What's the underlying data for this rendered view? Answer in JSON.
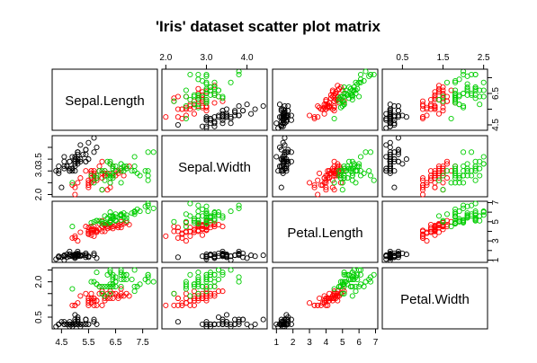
{
  "chart_data": {
    "type": "scatter",
    "title": "'Iris' dataset scatter plot matrix",
    "variables": [
      "Sepal.Length",
      "Sepal.Width",
      "Petal.Length",
      "Petal.Width"
    ],
    "axis_ticks": {
      "Sepal.Length": [
        4.5,
        5.5,
        6.5,
        7.5
      ],
      "Sepal.Width": [
        2.0,
        3.0,
        4.0
      ],
      "Petal.Length": [
        1,
        2,
        3,
        4,
        5,
        6,
        7
      ],
      "Petal.Width": [
        0.5,
        1.5,
        2.5
      ]
    },
    "tick_labels": {
      "Sepal.Length": [
        "4.5",
        "5.5",
        "6.5",
        "7.5"
      ],
      "Sepal.Width": [
        "2.0",
        "3.0",
        "4.0"
      ],
      "Petal.Length": [
        "1",
        "2",
        "3",
        "4",
        "5",
        "6",
        "7"
      ],
      "Petal.Width": [
        "0.5",
        "1.5",
        "2.5"
      ]
    },
    "axis_ticks_y": {
      "Sepal.Length": [
        4.5,
        5.5,
        6.5,
        7.5
      ],
      "Sepal.Width": [
        2.0,
        2.5,
        3.0,
        3.5,
        4.0
      ],
      "Petal.Length": [
        1,
        2,
        3,
        4,
        5,
        6,
        7
      ],
      "Petal.Width": [
        0.5,
        1.0,
        1.5,
        2.0,
        2.5
      ]
    },
    "tick_labels_y": {
      "Sepal.Length": [
        "4.5",
        "",
        "6.5",
        ""
      ],
      "Sepal.Width": [
        "2.0",
        "",
        "3.0",
        "3.5",
        ""
      ],
      "Petal.Length": [
        "1",
        "",
        "3",
        "",
        "5",
        "",
        "7"
      ],
      "Petal.Width": [
        "0.5",
        "",
        "",
        "2.0",
        ""
      ]
    },
    "axis_ranges": {
      "Sepal.Length": [
        4.3,
        7.9
      ],
      "Sepal.Width": [
        2.0,
        4.4
      ],
      "Petal.Length": [
        1.0,
        6.9
      ],
      "Petal.Width": [
        0.1,
        2.5
      ]
    },
    "series": [
      {
        "color": "#000000",
        "points": [
          [
            5.1,
            3.5,
            1.4,
            0.2
          ],
          [
            4.9,
            3.0,
            1.4,
            0.2
          ],
          [
            4.7,
            3.2,
            1.3,
            0.2
          ],
          [
            4.6,
            3.1,
            1.5,
            0.2
          ],
          [
            5.0,
            3.6,
            1.4,
            0.2
          ],
          [
            5.4,
            3.9,
            1.7,
            0.4
          ],
          [
            4.6,
            3.4,
            1.4,
            0.3
          ],
          [
            5.0,
            3.4,
            1.5,
            0.2
          ],
          [
            4.4,
            2.9,
            1.4,
            0.2
          ],
          [
            4.9,
            3.1,
            1.5,
            0.1
          ],
          [
            5.4,
            3.7,
            1.5,
            0.2
          ],
          [
            4.8,
            3.4,
            1.6,
            0.2
          ],
          [
            4.8,
            3.0,
            1.4,
            0.1
          ],
          [
            4.3,
            3.0,
            1.1,
            0.1
          ],
          [
            5.8,
            4.0,
            1.2,
            0.2
          ],
          [
            5.7,
            4.4,
            1.5,
            0.4
          ],
          [
            5.4,
            3.9,
            1.3,
            0.4
          ],
          [
            5.1,
            3.5,
            1.4,
            0.3
          ],
          [
            5.7,
            3.8,
            1.7,
            0.3
          ],
          [
            5.1,
            3.8,
            1.5,
            0.3
          ],
          [
            5.4,
            3.4,
            1.7,
            0.2
          ],
          [
            5.1,
            3.7,
            1.5,
            0.4
          ],
          [
            4.6,
            3.6,
            1.0,
            0.2
          ],
          [
            5.1,
            3.3,
            1.7,
            0.5
          ],
          [
            4.8,
            3.4,
            1.9,
            0.2
          ],
          [
            5.0,
            3.0,
            1.6,
            0.2
          ],
          [
            5.0,
            3.4,
            1.6,
            0.4
          ],
          [
            5.2,
            3.5,
            1.5,
            0.2
          ],
          [
            5.2,
            3.4,
            1.4,
            0.2
          ],
          [
            4.7,
            3.2,
            1.6,
            0.2
          ],
          [
            4.8,
            3.1,
            1.6,
            0.2
          ],
          [
            5.4,
            3.4,
            1.5,
            0.4
          ],
          [
            5.2,
            4.1,
            1.5,
            0.1
          ],
          [
            5.5,
            4.2,
            1.4,
            0.2
          ],
          [
            4.9,
            3.1,
            1.5,
            0.2
          ],
          [
            5.0,
            3.2,
            1.2,
            0.2
          ],
          [
            5.5,
            3.5,
            1.3,
            0.2
          ],
          [
            4.9,
            3.6,
            1.4,
            0.1
          ],
          [
            4.4,
            3.0,
            1.3,
            0.2
          ],
          [
            5.1,
            3.4,
            1.5,
            0.2
          ],
          [
            5.0,
            3.5,
            1.3,
            0.3
          ],
          [
            4.5,
            2.3,
            1.3,
            0.3
          ],
          [
            4.4,
            3.2,
            1.3,
            0.2
          ],
          [
            5.0,
            3.5,
            1.6,
            0.6
          ],
          [
            5.1,
            3.8,
            1.9,
            0.4
          ],
          [
            4.8,
            3.0,
            1.4,
            0.3
          ],
          [
            5.1,
            3.8,
            1.6,
            0.2
          ],
          [
            4.6,
            3.2,
            1.4,
            0.2
          ],
          [
            5.3,
            3.7,
            1.5,
            0.2
          ],
          [
            5.0,
            3.3,
            1.4,
            0.2
          ]
        ]
      },
      {
        "color": "#ff0000",
        "points": [
          [
            7.0,
            3.2,
            4.7,
            1.4
          ],
          [
            6.4,
            3.2,
            4.5,
            1.5
          ],
          [
            6.9,
            3.1,
            4.9,
            1.5
          ],
          [
            5.5,
            2.3,
            4.0,
            1.3
          ],
          [
            6.5,
            2.8,
            4.6,
            1.5
          ],
          [
            5.7,
            2.8,
            4.5,
            1.3
          ],
          [
            6.3,
            3.3,
            4.7,
            1.6
          ],
          [
            4.9,
            2.4,
            3.3,
            1.0
          ],
          [
            6.6,
            2.9,
            4.6,
            1.3
          ],
          [
            5.2,
            2.7,
            3.9,
            1.4
          ],
          [
            5.0,
            2.0,
            3.5,
            1.0
          ],
          [
            5.9,
            3.0,
            4.2,
            1.5
          ],
          [
            6.0,
            2.2,
            4.0,
            1.0
          ],
          [
            6.1,
            2.9,
            4.7,
            1.4
          ],
          [
            5.6,
            2.9,
            3.6,
            1.3
          ],
          [
            6.7,
            3.1,
            4.4,
            1.4
          ],
          [
            5.6,
            3.0,
            4.5,
            1.5
          ],
          [
            5.8,
            2.7,
            4.1,
            1.0
          ],
          [
            6.2,
            2.2,
            4.5,
            1.5
          ],
          [
            5.6,
            2.5,
            3.9,
            1.1
          ],
          [
            5.9,
            3.2,
            4.8,
            1.8
          ],
          [
            6.1,
            2.8,
            4.0,
            1.3
          ],
          [
            6.3,
            2.5,
            4.9,
            1.5
          ],
          [
            6.1,
            2.8,
            4.7,
            1.2
          ],
          [
            6.4,
            2.9,
            4.3,
            1.3
          ],
          [
            6.6,
            3.0,
            4.4,
            1.4
          ],
          [
            6.8,
            2.8,
            4.8,
            1.4
          ],
          [
            6.7,
            3.0,
            5.0,
            1.7
          ],
          [
            6.0,
            2.9,
            4.5,
            1.5
          ],
          [
            5.7,
            2.6,
            3.5,
            1.0
          ],
          [
            5.5,
            2.4,
            3.8,
            1.1
          ],
          [
            5.5,
            2.4,
            3.7,
            1.0
          ],
          [
            5.8,
            2.7,
            3.9,
            1.2
          ],
          [
            6.0,
            2.7,
            5.1,
            1.6
          ],
          [
            5.4,
            3.0,
            4.5,
            1.5
          ],
          [
            6.0,
            3.4,
            4.5,
            1.6
          ],
          [
            6.7,
            3.1,
            4.7,
            1.5
          ],
          [
            6.3,
            2.3,
            4.4,
            1.3
          ],
          [
            5.6,
            3.0,
            4.1,
            1.3
          ],
          [
            5.5,
            2.5,
            4.0,
            1.3
          ],
          [
            5.5,
            2.6,
            4.4,
            1.2
          ],
          [
            6.1,
            3.0,
            4.6,
            1.4
          ],
          [
            5.8,
            2.6,
            4.0,
            1.2
          ],
          [
            5.0,
            2.3,
            3.3,
            1.0
          ],
          [
            5.6,
            2.7,
            4.2,
            1.3
          ],
          [
            5.7,
            3.0,
            4.2,
            1.2
          ],
          [
            5.7,
            2.9,
            4.2,
            1.3
          ],
          [
            6.2,
            2.9,
            4.3,
            1.3
          ],
          [
            5.1,
            2.5,
            3.0,
            1.1
          ],
          [
            5.7,
            2.8,
            4.1,
            1.3
          ]
        ]
      },
      {
        "color": "#00cd00",
        "points": [
          [
            6.3,
            3.3,
            6.0,
            2.5
          ],
          [
            5.8,
            2.7,
            5.1,
            1.9
          ],
          [
            7.1,
            3.0,
            5.9,
            2.1
          ],
          [
            6.3,
            2.9,
            5.6,
            1.8
          ],
          [
            6.5,
            3.0,
            5.8,
            2.2
          ],
          [
            7.6,
            3.0,
            6.6,
            2.1
          ],
          [
            4.9,
            2.5,
            4.5,
            1.7
          ],
          [
            7.3,
            2.9,
            6.3,
            1.8
          ],
          [
            6.7,
            2.5,
            5.8,
            1.8
          ],
          [
            7.2,
            3.6,
            6.1,
            2.5
          ],
          [
            6.5,
            3.2,
            5.1,
            2.0
          ],
          [
            6.4,
            2.7,
            5.3,
            1.9
          ],
          [
            6.8,
            3.0,
            5.5,
            2.1
          ],
          [
            5.7,
            2.5,
            5.0,
            2.0
          ],
          [
            5.8,
            2.8,
            5.1,
            2.4
          ],
          [
            6.4,
            3.2,
            5.3,
            2.3
          ],
          [
            6.5,
            3.0,
            5.5,
            1.8
          ],
          [
            7.7,
            3.8,
            6.7,
            2.2
          ],
          [
            7.7,
            2.6,
            6.9,
            2.3
          ],
          [
            6.0,
            2.2,
            5.0,
            1.5
          ],
          [
            6.9,
            3.2,
            5.7,
            2.3
          ],
          [
            5.6,
            2.8,
            4.9,
            2.0
          ],
          [
            7.7,
            2.8,
            6.7,
            2.0
          ],
          [
            6.3,
            2.7,
            4.9,
            1.8
          ],
          [
            6.7,
            3.3,
            5.7,
            2.1
          ],
          [
            7.2,
            3.2,
            6.0,
            1.8
          ],
          [
            6.2,
            2.8,
            4.8,
            1.8
          ],
          [
            6.1,
            3.0,
            4.9,
            1.8
          ],
          [
            6.4,
            2.8,
            5.6,
            2.1
          ],
          [
            7.2,
            3.0,
            5.8,
            1.6
          ],
          [
            7.4,
            2.8,
            6.1,
            1.9
          ],
          [
            7.9,
            3.8,
            6.4,
            2.0
          ],
          [
            6.4,
            2.8,
            5.6,
            2.2
          ],
          [
            6.3,
            2.8,
            5.1,
            1.5
          ],
          [
            6.1,
            2.6,
            5.6,
            1.4
          ],
          [
            7.7,
            3.0,
            6.1,
            2.3
          ],
          [
            6.3,
            3.4,
            5.6,
            2.4
          ],
          [
            6.4,
            3.1,
            5.5,
            1.8
          ],
          [
            6.0,
            3.0,
            4.8,
            1.8
          ],
          [
            6.9,
            3.1,
            5.4,
            2.1
          ],
          [
            6.7,
            3.1,
            5.6,
            2.4
          ],
          [
            6.9,
            3.1,
            5.1,
            2.3
          ],
          [
            5.8,
            2.7,
            5.1,
            1.9
          ],
          [
            6.8,
            3.2,
            5.9,
            2.3
          ],
          [
            6.7,
            3.3,
            5.7,
            2.5
          ],
          [
            6.7,
            3.0,
            5.2,
            2.3
          ],
          [
            6.3,
            2.5,
            5.0,
            1.9
          ],
          [
            6.5,
            3.0,
            5.2,
            2.0
          ],
          [
            6.2,
            3.4,
            5.4,
            2.3
          ],
          [
            5.9,
            3.0,
            5.1,
            1.8
          ]
        ]
      }
    ],
    "grid": false,
    "legend": "none"
  }
}
